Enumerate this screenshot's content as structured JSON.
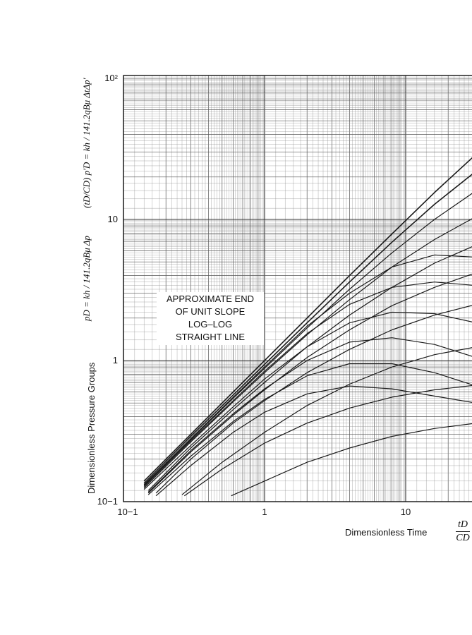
{
  "chart_data": {
    "type": "line",
    "xscale": "log",
    "yscale": "log",
    "xlim": [
      0.1,
      31.6
    ],
    "ylim": [
      0.1,
      100
    ],
    "grid": true,
    "xticks": [
      "10−1",
      "1",
      "10"
    ],
    "yticks": [
      "10−1",
      "1",
      "10",
      "10²"
    ],
    "xlabel": "Dimensionless Time",
    "xlabel_fraction": {
      "numerator": "tD",
      "denominator": "CD"
    },
    "ylabel": "Dimensionless Pressure Groups",
    "ylabel_pd": "pD = kh / 141.2qBμ Δp",
    "ylabel_derivative": "(tD/CD) p′D = kh / 141.2qBμ ΔtΔp′",
    "annotation": [
      "APPROXIMATE END",
      "OF UNIT SLOPE",
      "LOG–LOG",
      "STRAIGHT LINE"
    ],
    "series": [
      {
        "x": [
          0.14,
          0.3,
          0.6,
          1,
          2,
          4,
          8,
          16,
          31.6
        ],
        "y": [
          0.14,
          0.3,
          0.6,
          1.0,
          2.0,
          4.0,
          7.9,
          15.5,
          29
        ]
      },
      {
        "x": [
          0.14,
          0.3,
          0.6,
          1,
          2,
          4,
          8,
          16,
          31.6
        ],
        "y": [
          0.135,
          0.29,
          0.57,
          0.94,
          1.85,
          3.6,
          6.9,
          12.8,
          22
        ]
      },
      {
        "x": [
          0.14,
          0.3,
          0.6,
          1,
          2,
          4,
          8,
          16,
          31.6
        ],
        "y": [
          0.13,
          0.275,
          0.54,
          0.88,
          1.7,
          3.2,
          5.8,
          10,
          16
        ]
      },
      {
        "x": [
          0.14,
          0.3,
          0.6,
          1,
          2,
          4,
          8,
          16,
          31.6
        ],
        "y": [
          0.125,
          0.265,
          0.51,
          0.82,
          1.52,
          2.7,
          4.6,
          7.2,
          10.5
        ]
      },
      {
        "x": [
          0.15,
          0.3,
          0.6,
          1,
          2,
          4,
          8,
          16,
          31.6
        ],
        "y": [
          0.12,
          0.24,
          0.45,
          0.7,
          1.25,
          2.1,
          3.3,
          4.9,
          6.6
        ]
      },
      {
        "x": [
          0.15,
          0.3,
          0.6,
          1,
          2,
          4,
          8,
          16,
          31.6
        ],
        "y": [
          0.115,
          0.225,
          0.41,
          0.62,
          1.05,
          1.65,
          2.45,
          3.3,
          4.2
        ]
      },
      {
        "x": [
          0.17,
          0.3,
          0.6,
          1,
          2,
          4,
          8,
          16,
          31.6
        ],
        "y": [
          0.115,
          0.2,
          0.36,
          0.52,
          0.82,
          1.2,
          1.65,
          2.1,
          2.5
        ]
      },
      {
        "x": [
          0.26,
          0.5,
          1,
          2,
          4,
          8,
          16,
          31.6
        ],
        "y": [
          0.112,
          0.19,
          0.31,
          0.48,
          0.68,
          0.9,
          1.1,
          1.25
        ]
      },
      {
        "x": [
          0.27,
          0.5,
          1,
          2,
          4,
          8,
          16,
          31.6
        ],
        "y": [
          0.11,
          0.17,
          0.26,
          0.36,
          0.46,
          0.55,
          0.62,
          0.67
        ]
      },
      {
        "x": [
          0.58,
          1,
          2,
          4,
          8,
          16,
          31.6
        ],
        "y": [
          0.11,
          0.14,
          0.19,
          0.24,
          0.29,
          0.33,
          0.36
        ]
      },
      {
        "x": [
          0.14,
          0.3,
          0.6,
          1,
          2,
          4,
          8,
          16,
          31.6
        ],
        "y": [
          0.128,
          0.27,
          0.52,
          0.84,
          1.55,
          2.5,
          3.3,
          3.6,
          3.4
        ]
      },
      {
        "x": [
          0.14,
          0.3,
          0.6,
          1,
          2,
          4,
          8,
          16,
          31.6
        ],
        "y": [
          0.122,
          0.25,
          0.47,
          0.74,
          1.25,
          1.85,
          2.2,
          2.15,
          1.85
        ]
      },
      {
        "x": [
          0.15,
          0.3,
          0.6,
          1,
          2,
          4,
          8,
          16,
          31.6
        ],
        "y": [
          0.117,
          0.23,
          0.42,
          0.63,
          1.0,
          1.35,
          1.45,
          1.3,
          1.05
        ]
      },
      {
        "x": [
          0.15,
          0.3,
          0.6,
          1,
          2,
          4,
          8,
          16,
          31.6
        ],
        "y": [
          0.112,
          0.21,
          0.37,
          0.53,
          0.78,
          0.95,
          0.95,
          0.82,
          0.66
        ]
      },
      {
        "x": [
          0.17,
          0.3,
          0.6,
          1,
          2,
          4,
          8,
          16,
          31.6
        ],
        "y": [
          0.11,
          0.18,
          0.31,
          0.43,
          0.58,
          0.66,
          0.63,
          0.56,
          0.5
        ]
      },
      {
        "x": [
          0.14,
          0.3,
          0.6,
          1,
          2,
          4,
          8,
          16,
          31.6
        ],
        "y": [
          0.132,
          0.28,
          0.55,
          0.9,
          1.75,
          3.0,
          4.6,
          5.6,
          5.4
        ]
      }
    ]
  }
}
